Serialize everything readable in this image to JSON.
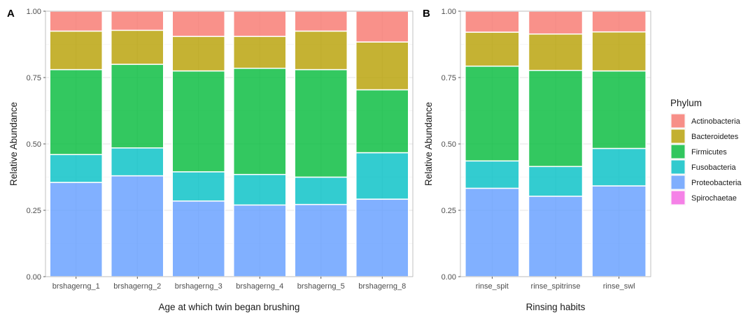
{
  "legend": {
    "title": "Phylum",
    "items": [
      {
        "name": "Actinobacteria",
        "color": "#F8766D"
      },
      {
        "name": "Bacteroidetes",
        "color": "#B79F00"
      },
      {
        "name": "Firmicutes",
        "color": "#00BA38"
      },
      {
        "name": "Fusobacteria",
        "color": "#00BFC4"
      },
      {
        "name": "Proteobacteria",
        "color": "#619CFF"
      },
      {
        "name": "Spirochaetae",
        "color": "#F564E3"
      }
    ]
  },
  "chart_data": [
    {
      "panel_label": "A",
      "type": "bar",
      "stacked": true,
      "xlabel": "Age at which twin began brushing",
      "ylabel": "Relative Abundance",
      "ylim": [
        0,
        1
      ],
      "yticks": [
        "0.00",
        "0.25",
        "0.50",
        "0.75",
        "1.00"
      ],
      "grid": true,
      "categories": [
        "brshagerng_1",
        "brshagerng_2",
        "brshagerng_3",
        "brshagerng_4",
        "brshagerng_5",
        "brshagerng_8"
      ],
      "series": [
        {
          "name": "Proteobacteria",
          "values": [
            0.355,
            0.38,
            0.285,
            0.27,
            0.272,
            0.292
          ]
        },
        {
          "name": "Fusobacteria",
          "values": [
            0.105,
            0.105,
            0.11,
            0.115,
            0.103,
            0.175
          ]
        },
        {
          "name": "Firmicutes",
          "values": [
            0.32,
            0.315,
            0.38,
            0.4,
            0.405,
            0.237
          ]
        },
        {
          "name": "Bacteroidetes",
          "values": [
            0.145,
            0.128,
            0.13,
            0.12,
            0.145,
            0.18
          ]
        },
        {
          "name": "Actinobacteria",
          "values": [
            0.075,
            0.072,
            0.095,
            0.095,
            0.075,
            0.116
          ]
        },
        {
          "name": "Spirochaetae",
          "values": [
            0,
            0,
            0,
            0,
            0,
            0
          ]
        }
      ]
    },
    {
      "panel_label": "B",
      "type": "bar",
      "stacked": true,
      "xlabel": "Rinsing habits",
      "ylabel": "Relative Abundance",
      "ylim": [
        0,
        1
      ],
      "yticks": [
        "0.00",
        "0.25",
        "0.50",
        "0.75",
        "1.00"
      ],
      "grid": true,
      "categories": [
        "rinse_spit",
        "rinse_spitrinse",
        "rinse_swl"
      ],
      "series": [
        {
          "name": "Proteobacteria",
          "values": [
            0.333,
            0.303,
            0.342
          ]
        },
        {
          "name": "Fusobacteria",
          "values": [
            0.103,
            0.112,
            0.141
          ]
        },
        {
          "name": "Firmicutes",
          "values": [
            0.357,
            0.362,
            0.292
          ]
        },
        {
          "name": "Bacteroidetes",
          "values": [
            0.128,
            0.137,
            0.147
          ]
        },
        {
          "name": "Actinobacteria",
          "values": [
            0.079,
            0.086,
            0.078
          ]
        },
        {
          "name": "Spirochaetae",
          "values": [
            0,
            0,
            0
          ]
        }
      ]
    }
  ]
}
